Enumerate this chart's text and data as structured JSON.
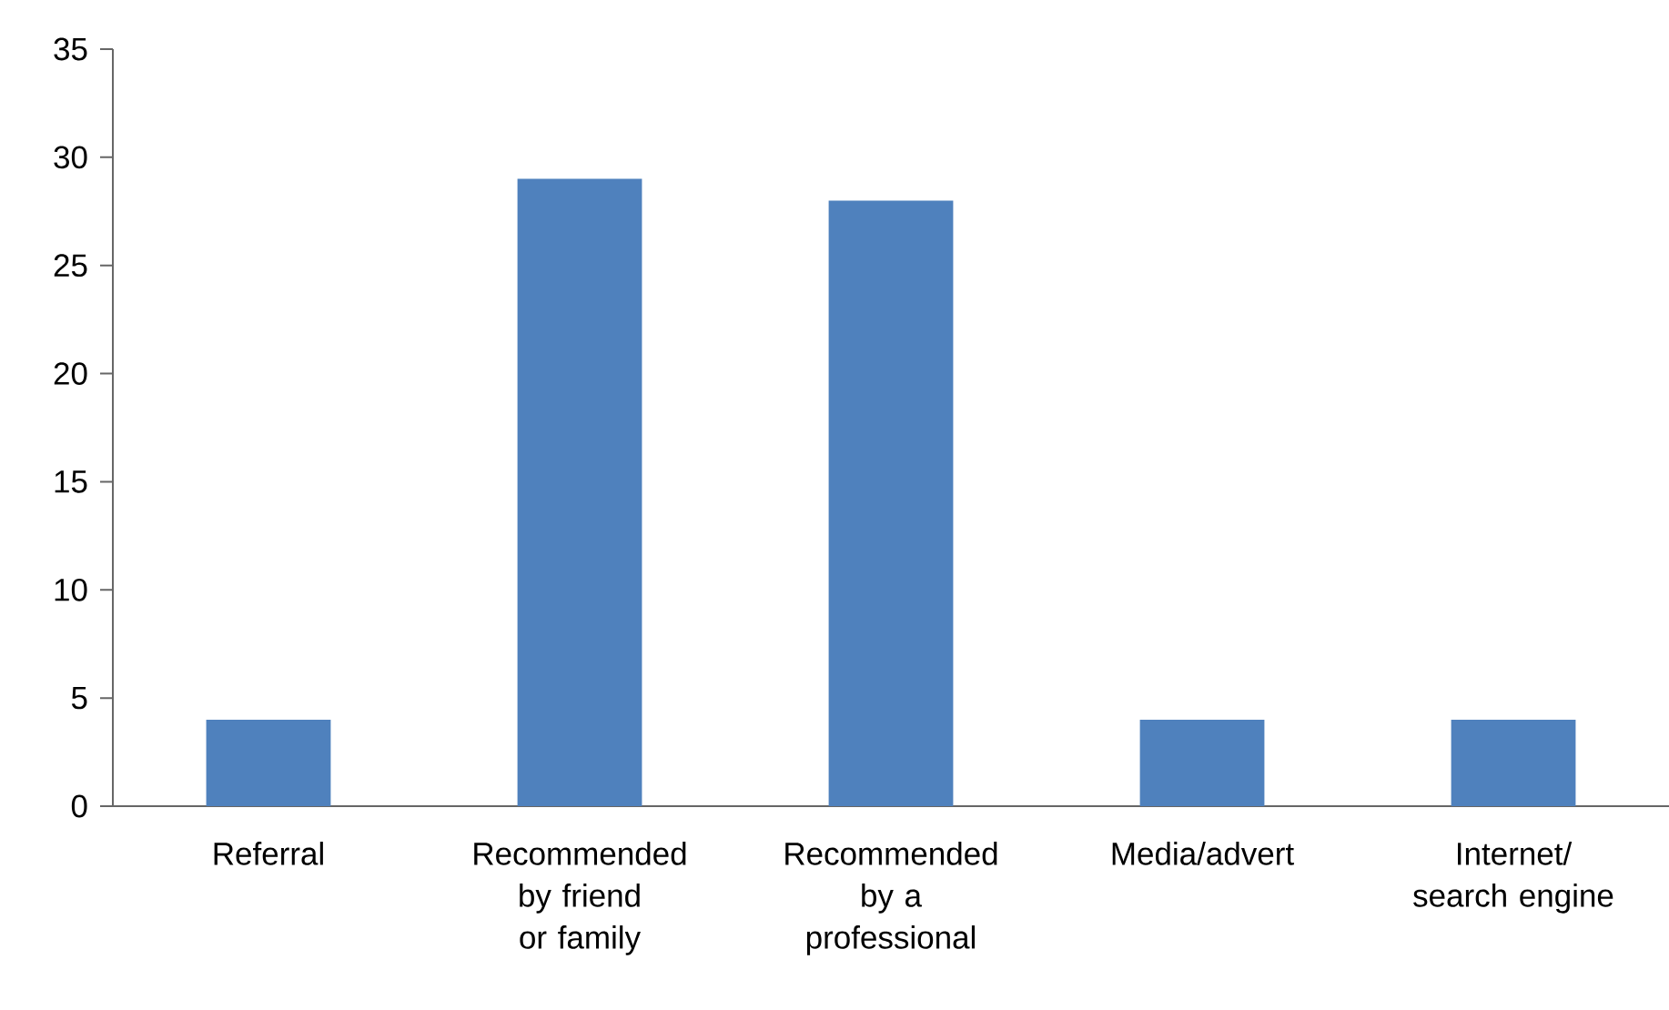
{
  "chart_data": {
    "type": "bar",
    "categories": [
      "Referral",
      "Recommended by friend or family",
      "Recommended by a professional",
      "Media/advert",
      "Internet/ search engine"
    ],
    "values": [
      4,
      29,
      28,
      4,
      4
    ],
    "color": "#4f81bd",
    "ylim": [
      0,
      35
    ],
    "yticks": [
      0,
      5,
      10,
      15,
      20,
      25,
      30,
      35
    ],
    "grid": false
  }
}
